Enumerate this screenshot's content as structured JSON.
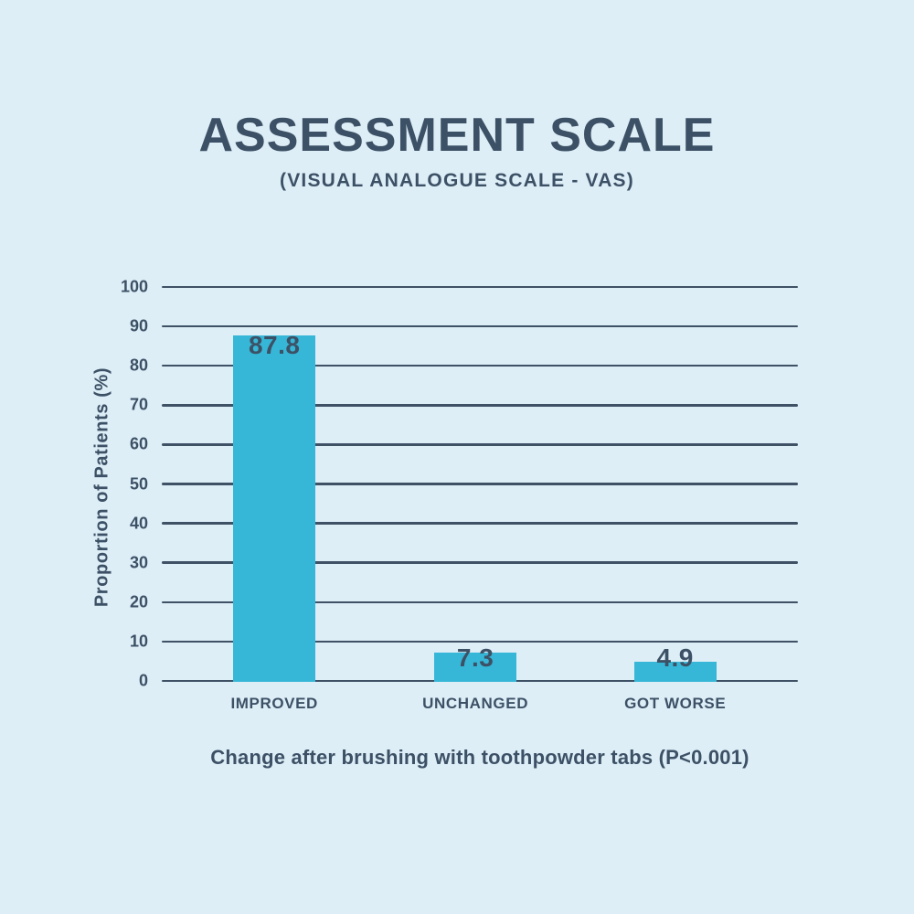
{
  "header": {
    "title": "ASSESSMENT SCALE",
    "subtitle": "(VISUAL ANALOGUE SCALE - VAS)"
  },
  "chart_data": {
    "type": "bar",
    "title": "ASSESSMENT SCALE",
    "subtitle": "(VISUAL ANALOGUE SCALE - VAS)",
    "categories": [
      "IMPROVED",
      "UNCHANGED",
      "GOT WORSE"
    ],
    "values": [
      87.8,
      7.3,
      4.9
    ],
    "value_labels": [
      "87.8",
      "7.3",
      "4.9"
    ],
    "xlabel": "Change after brushing with toothpowder tabs (P<0.001)",
    "ylabel": "Proportion of Patients (%)",
    "ylim": [
      0,
      100
    ],
    "yticks": [
      0,
      10,
      20,
      30,
      40,
      50,
      60,
      70,
      80,
      90,
      100
    ],
    "grid": "horizontal",
    "legend": "none"
  },
  "colors": {
    "background": "#ddeef7",
    "bar": "#36b7d8",
    "text": "#3d5166",
    "gridline": "#3e5165"
  }
}
